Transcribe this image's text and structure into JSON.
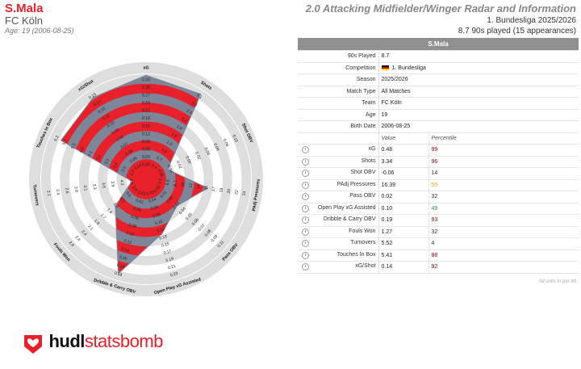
{
  "header": {
    "player_name": "S.Mala",
    "team": "FC Köln",
    "age_line": "Age: 19 (2006-08-25)",
    "title": "2.0 Attacking Midfielder/Winger Radar and Information",
    "league_line": "1. Bundesliga 2025/2026",
    "played_line": "8.7 90s played (15 appearances)"
  },
  "colors": {
    "accent": "#e8202a",
    "radar_fill": "#e8202a",
    "radar_overlay": "#7c8698",
    "ring": "#dedede",
    "good_pct": "#8b0000",
    "mid_pct": "#e0b000",
    "avg_pct": "#3a8a3a"
  },
  "chart_data": {
    "type": "radar",
    "metrics": [
      {
        "name": "xG",
        "value": 0.48,
        "ticks": [
          "0.00",
          "0.03",
          "0.06",
          "0.09",
          "0.12",
          "0.15",
          "0.18",
          "0.21",
          "0.24",
          "0.27",
          "0.30",
          "0.33",
          "0.36"
        ]
      },
      {
        "name": "Shots",
        "value": 3.34,
        "ticks": [
          "0.4",
          "0.7",
          "1.0",
          "1.3",
          "1.6",
          "1.9",
          "2.2",
          "2.5",
          "2.8",
          "3.1",
          "3.2"
        ]
      },
      {
        "name": "Shot OBV",
        "value": -0.06,
        "ticks": [
          "-0.06",
          "-0.04",
          "-0.02",
          "0.00",
          "0.02",
          "0.04",
          "0.06",
          "0.08",
          "0.10",
          "0.12"
        ]
      },
      {
        "name": "PAdj Pressures",
        "value": 16.39,
        "ticks": [
          "4.9",
          "6.8",
          "8.7",
          "10",
          "12",
          "14",
          "15",
          "17",
          "19",
          "20",
          "22",
          "24",
          "26"
        ]
      },
      {
        "name": "Pass OBV",
        "value": 0.02,
        "ticks": [
          "0.00",
          "0.01",
          "0.02",
          "0.03",
          "0.04",
          "0.05",
          "0.06",
          "0.07",
          "0.08",
          "0.09",
          "0.11",
          "0.12"
        ]
      },
      {
        "name": "Open Play xG Assisted",
        "value": 0.1,
        "ticks": [
          "0.02",
          "0.04",
          "0.06",
          "0.08",
          "0.10",
          "0.12",
          "0.13",
          "0.15",
          "0.17",
          "0.19",
          "0.21",
          "0.23",
          "0.25"
        ]
      },
      {
        "name": "Dribble & Carry OBV",
        "value": 0.19,
        "ticks": [
          "0.01",
          "0.02",
          "0.04",
          "0.06",
          "0.08",
          "0.10",
          "0.12",
          "0.14",
          "0.16",
          "0.18",
          "0.18",
          "0.20"
        ]
      },
      {
        "name": "Fouls Won",
        "value": 1.27,
        "ticks": [
          "0.4",
          "0.6",
          "0.9",
          "1.2",
          "1.4",
          "1.7",
          "1.9",
          "2.1",
          "2.4",
          "2.6",
          "2.9",
          "3.1"
        ]
      },
      {
        "name": "Turnovers",
        "value": 5.52,
        "ticks": [
          "4.5",
          "4.2",
          "3.9",
          "3.6",
          "3.3",
          "3.1",
          "2.8",
          "2.6",
          "2.4",
          "2.1",
          "1.8"
        ]
      },
      {
        "name": "Touches In Box",
        "value": 5.41,
        "ticks": [
          "1.3",
          "2.0",
          "2.6",
          "3.1",
          "3.6",
          "4.1",
          "4.6",
          "5.1",
          "5.7",
          "6.2",
          "6.7"
        ]
      },
      {
        "name": "xG/Shot",
        "value": 0.14,
        "ticks": [
          "0.04",
          "0.05",
          "0.06",
          "0.07",
          "0.08",
          "0.09",
          "0.10",
          "0.11",
          "0.12",
          "0.13",
          "0.15",
          "0.16"
        ]
      }
    ],
    "percentiles": [
      99,
      96,
      14,
      55,
      32,
      49,
      93,
      32,
      4,
      88,
      92
    ]
  },
  "table": {
    "header": "S.Mala",
    "info_rows": [
      {
        "label": "90s Played",
        "value": "8.7"
      },
      {
        "label": "Competition",
        "value": "1. Bundesliga"
      },
      {
        "label": "Season",
        "value": "2025/2026"
      },
      {
        "label": "Match Type",
        "value": "All Matches"
      },
      {
        "label": "Team",
        "value": "FC Köln"
      },
      {
        "label": "Age",
        "value": "19"
      },
      {
        "label": "Birth Date",
        "value": "2006-08-25"
      }
    ],
    "col_value": "Value",
    "col_percentile": "Percentile",
    "stat_rows": [
      {
        "label": "xG",
        "value": "0.48",
        "percentile": "99",
        "tier": "good"
      },
      {
        "label": "Shots",
        "value": "3.34",
        "percentile": "96",
        "tier": "good"
      },
      {
        "label": "Shot OBV",
        "value": "-0.06",
        "percentile": "14",
        "tier": "low"
      },
      {
        "label": "PAdj Pressures",
        "value": "16.39",
        "percentile": "55",
        "tier": "mid"
      },
      {
        "label": "Pass OBV",
        "value": "0.02",
        "percentile": "32",
        "tier": "low"
      },
      {
        "label": "Open Play xG Assisted",
        "value": "0.10",
        "percentile": "49",
        "tier": "avg"
      },
      {
        "label": "Dribble & Carry OBV",
        "value": "0.19",
        "percentile": "93",
        "tier": "good"
      },
      {
        "label": "Fouls Won",
        "value": "1.27",
        "percentile": "32",
        "tier": "low"
      },
      {
        "label": "Turnovers",
        "value": "5.52",
        "percentile": "4",
        "tier": "low"
      },
      {
        "label": "Touches In Box",
        "value": "5.41",
        "percentile": "88",
        "tier": "good"
      },
      {
        "label": "xG/Shot",
        "value": "0.14",
        "percentile": "92",
        "tier": "good"
      }
    ],
    "footnote": "All units in per 90"
  },
  "logo": {
    "hudl": "hudl",
    "statsbomb": "statsbomb"
  }
}
